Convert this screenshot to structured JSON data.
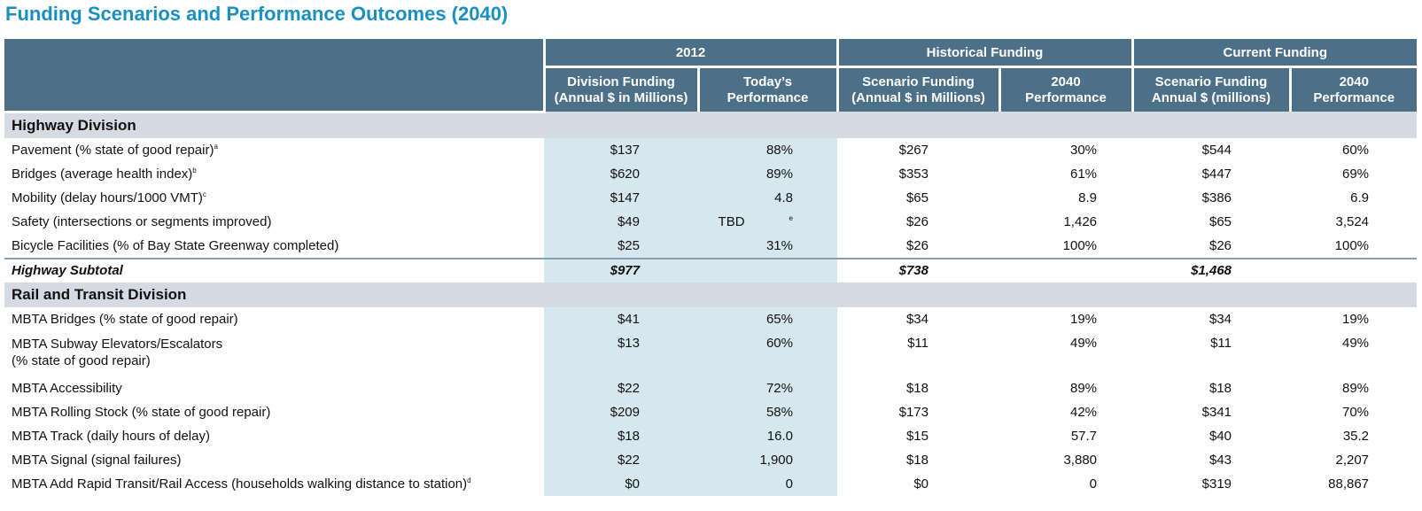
{
  "title": "Funding Scenarios and Performance Outcomes (2040)",
  "header": {
    "groups": [
      "2012",
      "Historical Funding",
      "Current Funding"
    ],
    "columns": [
      [
        "Division Funding",
        "(Annual $ in Millions)"
      ],
      [
        "Today’s",
        "Performance"
      ],
      [
        "Scenario Funding",
        "(Annual $ in Millions)"
      ],
      [
        "2040",
        "Performance"
      ],
      [
        "Scenario Funding",
        "Annual $ (millions)"
      ],
      [
        "2040",
        "Performance"
      ]
    ]
  },
  "sections": [
    {
      "name": "Highway Division",
      "rows": [
        {
          "label": "Pavement (% state of good repair)",
          "note": "a",
          "values": [
            "$137",
            "88%",
            "$267",
            "30%",
            "$544",
            "60%"
          ]
        },
        {
          "label": "Bridges (average health index)",
          "note": "b",
          "values": [
            "$620",
            "89%",
            "$353",
            "61%",
            "$447",
            "69%"
          ]
        },
        {
          "label": "Mobility (delay hours/1000 VMT)",
          "note": "c",
          "values": [
            "$147",
            "4.8",
            "$65",
            "8.9",
            "$386",
            "6.9"
          ]
        },
        {
          "label": "Safety (intersections or segments improved)",
          "note": "",
          "values": [
            "$49",
            "TBD",
            "$26",
            "1,426",
            "$65",
            "3,524"
          ],
          "value_notes": [
            "",
            "e",
            "",
            "",
            "",
            ""
          ]
        },
        {
          "label": "Bicycle Facilities (% of Bay State Greenway completed)",
          "note": "",
          "values": [
            "$25",
            "31%",
            "$26",
            "100%",
            "$26",
            "100%"
          ]
        }
      ],
      "subtotal": {
        "label": "Highway Subtotal",
        "values": [
          "$977",
          "",
          "$738",
          "",
          "$1,468",
          ""
        ]
      }
    },
    {
      "name": "Rail and Transit Division",
      "rows": [
        {
          "label": "MBTA Bridges (% state of good repair)",
          "note": "",
          "values": [
            "$41",
            "65%",
            "$34",
            "19%",
            "$34",
            "19%"
          ]
        },
        {
          "label": "MBTA Subway Elevators/Escalators",
          "label2": "(% state of good repair)",
          "note": "",
          "values": [
            "$13",
            "60%",
            "$11",
            "49%",
            "$11",
            "49%"
          ]
        },
        {
          "label": "MBTA Accessibility",
          "note": "",
          "values": [
            "$22",
            "72%",
            "$18",
            "89%",
            "$18",
            "89%"
          ]
        },
        {
          "label": "MBTA Rolling Stock (% state of good repair)",
          "note": "",
          "values": [
            "$209",
            "58%",
            "$173",
            "42%",
            "$341",
            "70%"
          ]
        },
        {
          "label": "MBTA Track (daily hours of delay)",
          "note": "",
          "values": [
            "$18",
            "16.0",
            "$15",
            "57.7",
            "$40",
            "35.2"
          ]
        },
        {
          "label": "MBTA Signal (signal failures)",
          "note": "",
          "values": [
            "$22",
            "1,900",
            "$18",
            "3,880",
            "$43",
            "2,207"
          ]
        },
        {
          "label": "MBTA Add Rapid Transit/Rail Access (households walking distance to station)",
          "note": "d",
          "values": [
            "$0",
            "0",
            "$0",
            "0",
            "$319",
            "88,867"
          ]
        }
      ]
    }
  ],
  "colors": {
    "title": "#1a8fc1",
    "header_bg": "#4d7089",
    "section_bg": "#d5dbe2",
    "highlight_col": "#d7e7f0"
  }
}
